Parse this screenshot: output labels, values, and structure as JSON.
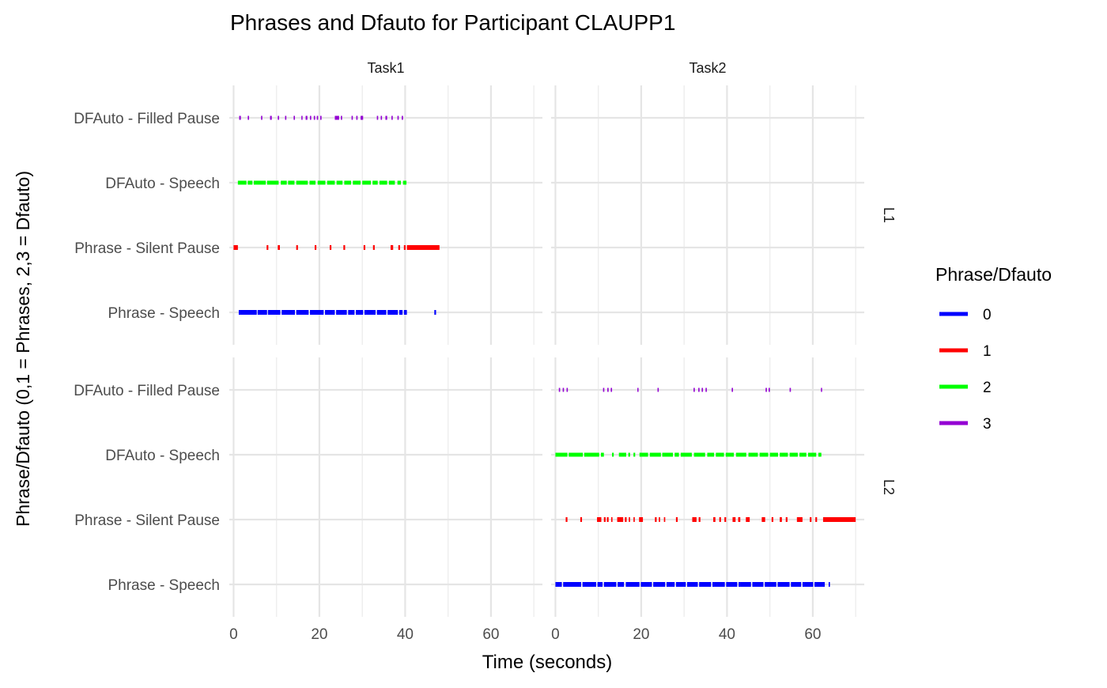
{
  "chart_data": {
    "type": "timeline-segments",
    "title": "Phrases and Dfauto for Participant CLAUPP1",
    "xlabel": "Time (seconds)",
    "ylabel": "Phrase/Dfauto (0,1 = Phrases, 2,3 = Dfauto)",
    "legend_title": "Phrase/Dfauto",
    "legend_position": "right",
    "xlim": [
      -1,
      72
    ],
    "x_ticks": [
      0,
      20,
      40,
      60
    ],
    "x_tick_labels": [
      "0",
      "20",
      "40",
      "60"
    ],
    "y_categories": [
      "Phrase - Speech",
      "Phrase - Silent Pause",
      "DFAuto - Speech",
      "DFAuto - Filled Pause"
    ],
    "col_facets": [
      "Task1",
      "Task2"
    ],
    "row_facets": [
      "L1",
      "L2"
    ],
    "legend": [
      {
        "label": "0",
        "color": "#0000ff"
      },
      {
        "label": "1",
        "color": "#ff0000"
      },
      {
        "label": "2",
        "color": "#00ff00"
      },
      {
        "label": "3",
        "color": "#9400d3"
      }
    ],
    "panels": [
      {
        "col": "Task1",
        "row": "L1",
        "series": [
          {
            "code": "0",
            "category": "Phrase - Speech",
            "segments": [
              [
                1.2,
                5.4
              ],
              [
                5.6,
                7.8
              ],
              [
                8.0,
                10.9
              ],
              [
                11.2,
                14.3
              ],
              [
                14.6,
                17.5
              ],
              [
                17.8,
                21.0
              ],
              [
                21.3,
                23.6
              ],
              [
                23.9,
                26.4
              ],
              [
                26.7,
                28.2
              ],
              [
                28.5,
                30.2
              ],
              [
                30.5,
                33.1
              ],
              [
                33.4,
                35.6
              ],
              [
                35.9,
                38.3
              ],
              [
                38.6,
                39.4
              ],
              [
                39.7,
                40.4
              ],
              [
                46.8,
                47.2
              ]
            ]
          },
          {
            "code": "1",
            "category": "Phrase - Silent Pause",
            "segments": [
              [
                0.0,
                1.0
              ],
              [
                7.7,
                8.1
              ],
              [
                10.3,
                10.8
              ],
              [
                14.6,
                15.0
              ],
              [
                18.9,
                19.3
              ],
              [
                22.4,
                22.8
              ],
              [
                25.6,
                26.0
              ],
              [
                30.3,
                30.7
              ],
              [
                32.5,
                32.9
              ],
              [
                36.6,
                37.2
              ],
              [
                38.4,
                38.8
              ],
              [
                39.7,
                40.1
              ],
              [
                40.4,
                48.0
              ]
            ]
          },
          {
            "code": "2",
            "category": "DFAuto - Speech",
            "segments": [
              [
                1.0,
                3.0
              ],
              [
                3.3,
                4.4
              ],
              [
                4.7,
                7.5
              ],
              [
                7.8,
                10.5
              ],
              [
                11.0,
                12.4
              ],
              [
                12.7,
                14.2
              ],
              [
                14.6,
                17.3
              ],
              [
                17.7,
                19.1
              ],
              [
                19.6,
                21.4
              ],
              [
                21.8,
                23.6
              ],
              [
                24.0,
                25.4
              ],
              [
                25.8,
                27.4
              ],
              [
                27.8,
                29.6
              ],
              [
                30.0,
                32.0
              ],
              [
                32.4,
                33.6
              ],
              [
                34.0,
                35.8
              ],
              [
                36.2,
                37.6
              ],
              [
                38.2,
                39.0
              ],
              [
                39.5,
                40.3
              ]
            ]
          },
          {
            "code": "3",
            "category": "DFAuto - Filled Pause",
            "segments": [
              [
                1.3,
                1.7
              ],
              [
                3.3,
                3.6
              ],
              [
                6.4,
                6.7
              ],
              [
                8.5,
                8.9
              ],
              [
                10.3,
                10.6
              ],
              [
                12.0,
                12.3
              ],
              [
                14.0,
                14.3
              ],
              [
                15.8,
                16.0
              ],
              [
                16.8,
                17.2
              ],
              [
                17.8,
                18.1
              ],
              [
                18.7,
                19.0
              ],
              [
                19.4,
                19.7
              ],
              [
                20.2,
                20.5
              ],
              [
                23.6,
                24.6
              ],
              [
                25.0,
                25.3
              ],
              [
                27.5,
                27.8
              ],
              [
                28.6,
                28.9
              ],
              [
                29.6,
                30.2
              ],
              [
                33.4,
                33.7
              ],
              [
                34.3,
                34.6
              ],
              [
                35.4,
                35.8
              ],
              [
                36.8,
                37.1
              ],
              [
                38.2,
                38.5
              ],
              [
                39.2,
                39.5
              ]
            ]
          }
        ]
      },
      {
        "col": "Task2",
        "row": "L1",
        "series": []
      },
      {
        "col": "Task1",
        "row": "L2",
        "series": []
      },
      {
        "col": "Task2",
        "row": "L2",
        "series": [
          {
            "code": "0",
            "category": "Phrase - Speech",
            "segments": [
              [
                0.0,
                1.5
              ],
              [
                1.8,
                6.0
              ],
              [
                6.3,
                9.5
              ],
              [
                9.8,
                11.0
              ],
              [
                11.3,
                14.2
              ],
              [
                14.5,
                16.0
              ],
              [
                16.4,
                19.6
              ],
              [
                19.9,
                22.5
              ],
              [
                22.8,
                25.6
              ],
              [
                25.9,
                27.8
              ],
              [
                28.1,
                30.4
              ],
              [
                30.7,
                33.2
              ],
              [
                33.5,
                36.3
              ],
              [
                36.6,
                39.5
              ],
              [
                39.8,
                42.4
              ],
              [
                42.7,
                45.6
              ],
              [
                45.9,
                48.5
              ],
              [
                48.8,
                51.5
              ],
              [
                51.8,
                54.6
              ],
              [
                54.9,
                57.3
              ],
              [
                57.6,
                60.1
              ],
              [
                60.4,
                62.8
              ],
              [
                63.7,
                64.0
              ]
            ]
          },
          {
            "code": "1",
            "category": "Phrase - Silent Pause",
            "segments": [
              [
                2.4,
                2.8
              ],
              [
                5.8,
                6.2
              ],
              [
                9.7,
                10.7
              ],
              [
                11.3,
                11.7
              ],
              [
                12.0,
                12.4
              ],
              [
                13.0,
                13.3
              ],
              [
                14.4,
                15.8
              ],
              [
                16.2,
                16.6
              ],
              [
                17.1,
                17.4
              ],
              [
                18.2,
                18.5
              ],
              [
                19.5,
                20.4
              ],
              [
                23.2,
                23.6
              ],
              [
                24.1,
                24.4
              ],
              [
                25.3,
                25.6
              ],
              [
                28.1,
                28.5
              ],
              [
                31.9,
                32.9
              ],
              [
                33.4,
                33.8
              ],
              [
                36.8,
                37.3
              ],
              [
                38.2,
                38.6
              ],
              [
                39.4,
                39.8
              ],
              [
                41.3,
                42.0
              ],
              [
                42.6,
                43.1
              ],
              [
                44.4,
                45.3
              ],
              [
                48.1,
                48.9
              ],
              [
                50.4,
                50.8
              ],
              [
                52.3,
                52.8
              ],
              [
                53.7,
                54.1
              ],
              [
                56.3,
                57.6
              ],
              [
                59.3,
                59.7
              ],
              [
                60.6,
                61.0
              ],
              [
                62.4,
                70.0
              ]
            ]
          },
          {
            "code": "2",
            "category": "DFAuto - Speech",
            "segments": [
              [
                0.0,
                2.8
              ],
              [
                3.1,
                6.4
              ],
              [
                6.7,
                10.2
              ],
              [
                10.6,
                11.3
              ],
              [
                13.2,
                13.6
              ],
              [
                14.8,
                16.5
              ],
              [
                17.0,
                17.4
              ],
              [
                18.2,
                18.6
              ],
              [
                19.6,
                21.6
              ],
              [
                22.0,
                24.6
              ],
              [
                24.9,
                27.4
              ],
              [
                27.8,
                28.8
              ],
              [
                29.2,
                31.8
              ],
              [
                32.3,
                34.9
              ],
              [
                35.4,
                37.0
              ],
              [
                37.4,
                39.3
              ],
              [
                39.7,
                41.6
              ],
              [
                42.1,
                44.5
              ],
              [
                45.0,
                47.2
              ],
              [
                47.6,
                49.6
              ],
              [
                50.0,
                51.9
              ],
              [
                52.3,
                54.2
              ],
              [
                54.6,
                56.5
              ],
              [
                56.9,
                58.5
              ],
              [
                58.9,
                60.8
              ],
              [
                61.3,
                62.0
              ]
            ]
          },
          {
            "code": "3",
            "category": "DFAuto - Filled Pause",
            "segments": [
              [
                0.8,
                1.1
              ],
              [
                1.7,
                2.0
              ],
              [
                2.6,
                2.9
              ],
              [
                11.1,
                11.4
              ],
              [
                12.1,
                12.4
              ],
              [
                12.9,
                13.2
              ],
              [
                19.1,
                19.3
              ],
              [
                23.8,
                24.1
              ],
              [
                32.2,
                32.5
              ],
              [
                33.3,
                33.6
              ],
              [
                34.1,
                34.4
              ],
              [
                35.0,
                35.3
              ],
              [
                41.1,
                41.4
              ],
              [
                49.0,
                49.3
              ],
              [
                49.7,
                50.0
              ],
              [
                54.6,
                54.9
              ],
              [
                61.9,
                62.1
              ]
            ]
          }
        ]
      }
    ]
  }
}
